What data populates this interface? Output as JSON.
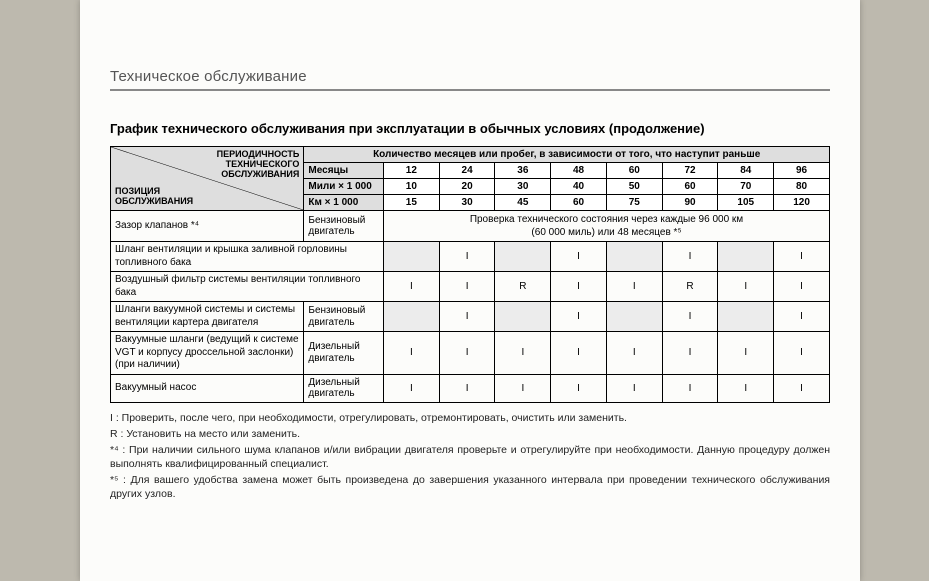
{
  "section_heading": "Техническое обслуживание",
  "title": "График технического обслуживания при эксплуатации в обычных условиях (продолжение)",
  "header": {
    "corner_top": "ПЕРИОДИЧНОСТЬ\nТЕХНИЧЕСКОГО\nОБСЛУЖИВАНИЯ",
    "corner_bottom": "ПОЗИЦИЯ\nОБСЛУЖИВАНИЯ",
    "merge": "Количество месяцев или пробег, в зависимости от того, что наступит раньше",
    "row_labels": [
      "Месяцы",
      "Мили × 1 000",
      "Км × 1 000"
    ],
    "months": [
      "12",
      "24",
      "36",
      "48",
      "60",
      "72",
      "84",
      "96"
    ],
    "miles": [
      "10",
      "20",
      "30",
      "40",
      "50",
      "60",
      "70",
      "80"
    ],
    "km": [
      "15",
      "30",
      "45",
      "60",
      "75",
      "90",
      "105",
      "120"
    ]
  },
  "engine_labels": {
    "petrol": "Бензиновый двигатель",
    "diesel": "Дизельный двигатель"
  },
  "rows": [
    {
      "item": "Зазор клапанов *⁴",
      "engine": "petrol",
      "type": "note",
      "note": "Проверка технического состояния через каждые 96 000 км\n(60 000 миль) или 48 месяцев *⁵"
    },
    {
      "item": "Шланг вентиляции и крышка заливной горловины топливного бака",
      "engine": null,
      "vals": [
        "",
        "I",
        "",
        "I",
        "",
        "I",
        "",
        "I"
      ],
      "shade_empty": true
    },
    {
      "item": "Воздушный фильтр системы вентиляции топливного бака",
      "engine": null,
      "vals": [
        "I",
        "I",
        "R",
        "I",
        "I",
        "R",
        "I",
        "I"
      ],
      "shade_empty": false
    },
    {
      "item": "Шланги вакуумной системы и системы вентиляции картера двигателя",
      "engine": "petrol",
      "vals": [
        "",
        "I",
        "",
        "I",
        "",
        "I",
        "",
        "I"
      ],
      "shade_empty": true
    },
    {
      "item": "Вакуумные шланги (ведущий к системе VGT и корпусу дроссельной заслонки) (при наличии)",
      "engine": "diesel",
      "vals": [
        "I",
        "I",
        "I",
        "I",
        "I",
        "I",
        "I",
        "I"
      ],
      "shade_empty": false
    },
    {
      "item": "Вакуумный насос",
      "engine": "diesel",
      "vals": [
        "I",
        "I",
        "I",
        "I",
        "I",
        "I",
        "I",
        "I"
      ],
      "shade_empty": false
    }
  ],
  "legend": {
    "I": "I : Проверить, после чего, при необходимости, отрегулировать, отремонтировать, очистить или заменить.",
    "R": "R : Установить на место или заменить.",
    "n4": "*⁴ : При наличии сильного шума клапанов и/или вибрации двигателя проверьте и отрегулируйте при необходимости. Данную процедуру должен выполнять квалифицированный специалист.",
    "n5": "*⁵ : Для вашего удобства замена может быть произведена до завершения указанного интервала при проведении технического обслуживания других узлов."
  }
}
